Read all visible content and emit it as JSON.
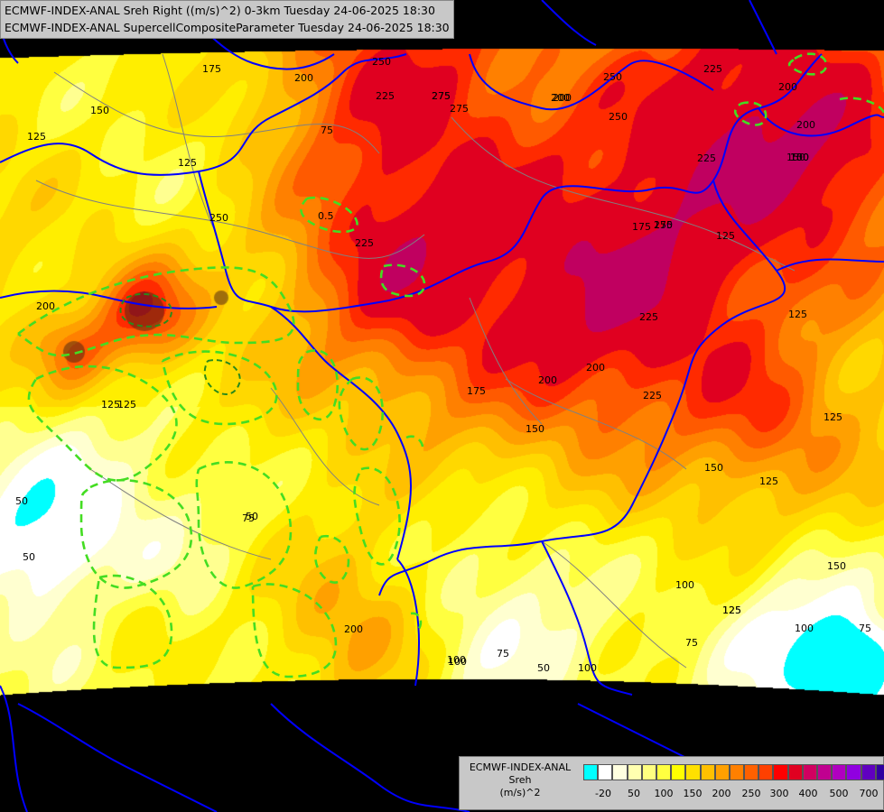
{
  "header": {
    "line1": "ECMWF-INDEX-ANAL Sreh Right ((m/s)^2) 0-3km Tuesday 24-06-2025 18:30",
    "line2": "ECMWF-INDEX-ANAL SupercellCompositeParameter Tuesday 24-06-2025 18:30"
  },
  "legend": {
    "title": [
      "ECMWF-INDEX-ANAL",
      "Sreh",
      "(m/s)^2"
    ],
    "colors": [
      "#00ffff",
      "#ffffff",
      "#ffffe0",
      "#ffffb0",
      "#ffff80",
      "#ffff40",
      "#ffff00",
      "#ffe000",
      "#ffc000",
      "#ffa000",
      "#ff8000",
      "#ff6000",
      "#ff4000",
      "#ff0000",
      "#e00020",
      "#d00060",
      "#c00090",
      "#b000c0",
      "#9000e0",
      "#6000c0",
      "#3000a0",
      "#000080"
    ],
    "tick_labels": [
      "-20",
      "50",
      "100",
      "150",
      "200",
      "250",
      "300",
      "400",
      "500",
      "700"
    ]
  },
  "map_labels": {
    "sreh_contours": [
      "175",
      "250",
      "225",
      "200",
      "275",
      "150",
      "125",
      "75",
      "225",
      "200",
      "275",
      "250",
      "200",
      "125",
      "125",
      "225",
      "250",
      "250",
      "225",
      "200",
      "200",
      "275",
      "200",
      "225",
      "225",
      "200",
      "175",
      "150",
      "125",
      "150",
      "125",
      "125",
      "150",
      "125",
      "75",
      "50",
      "50",
      "50",
      "100",
      "200",
      "100",
      "75",
      "50",
      "100",
      "125",
      "125",
      "100",
      "75",
      "175",
      "250",
      "200",
      "150",
      "100",
      "150",
      "175",
      "75",
      "125",
      "100"
    ],
    "scp_contours": [
      "0.5"
    ]
  },
  "colors": {
    "border": "#0000ff",
    "subregion_border": "#808080",
    "scp_contour": "#44dd22",
    "background": "#000000"
  }
}
